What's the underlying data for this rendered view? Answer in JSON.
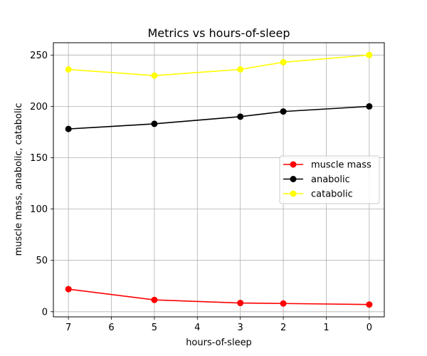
{
  "chart_data": {
    "type": "line",
    "title": "Metrics vs hours-of-sleep",
    "xlabel": "hours-of-sleep",
    "ylabel": "muscle mass, anabolic, catabolic",
    "x": [
      7,
      5,
      3,
      2,
      0
    ],
    "xlim": [
      7.35,
      -0.35
    ],
    "ylim": [
      -5,
      262
    ],
    "xticks": [
      7,
      6,
      5,
      4,
      3,
      2,
      1,
      0
    ],
    "yticks": [
      0,
      50,
      100,
      150,
      200,
      250
    ],
    "grid": true,
    "x_axis_reversed": true,
    "legend_position": "center-right",
    "series": [
      {
        "name": "muscle mass",
        "color": "#ff0000",
        "values": [
          22,
          11.5,
          8.5,
          8,
          7
        ]
      },
      {
        "name": "anabolic",
        "color": "#000000",
        "values": [
          178,
          183,
          190,
          195,
          200
        ]
      },
      {
        "name": "catabolic",
        "color": "#ffff00",
        "values": [
          236,
          230,
          236,
          243,
          250
        ]
      }
    ]
  }
}
